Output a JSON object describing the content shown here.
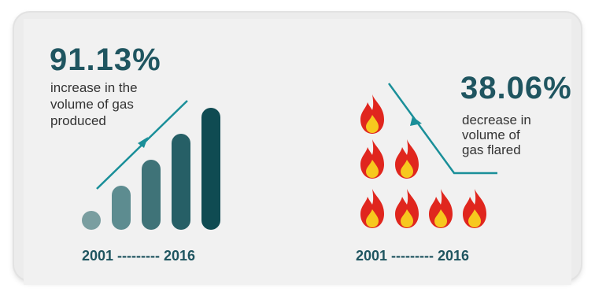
{
  "left_panel": {
    "stat": "91.13%",
    "desc_lines": [
      "increase in the",
      "volume of gas",
      "produced"
    ],
    "year_range": "2001 --------- 2016",
    "bar_colors": [
      "#7a9ea0",
      "#5d8c90",
      "#3f7378",
      "#265f66",
      "#0f4b52"
    ]
  },
  "right_panel": {
    "stat": "38.06%",
    "desc_lines": [
      "decrease in",
      "volume of",
      "gas flared"
    ],
    "year_range": "2001 --------- 2016",
    "flame_colors": {
      "outer": "#e0261e",
      "inner": "#f7c81e"
    },
    "arrow_color": "#1a8f99"
  }
}
